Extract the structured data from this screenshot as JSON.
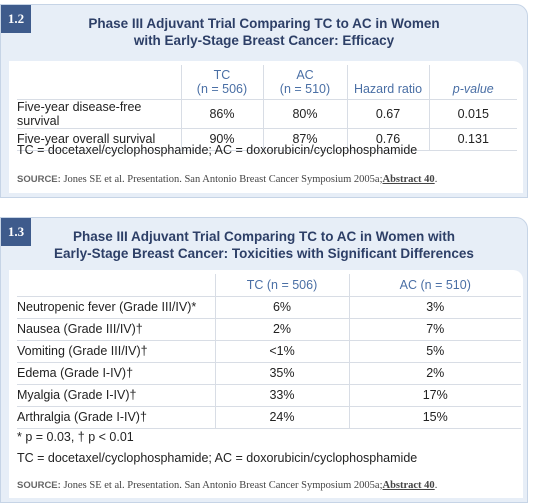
{
  "sections": [
    {
      "badge": "1.2",
      "title": [
        "Phase III Adjuvant Trial Comparing TC to AC in Women",
        "with Early-Stage Breast Cancer: Efficacy"
      ],
      "table": {
        "header": [
          [
            "TC",
            "(n = 506)"
          ],
          [
            "AC",
            "(n = 510)"
          ],
          [
            "Hazard ratio"
          ],
          [
            "p-value"
          ]
        ],
        "rows": [
          [
            "Five-year disease-free survival",
            "86%",
            "80%",
            "0.67",
            "0.015"
          ],
          [
            "Five-year overall survival",
            "90%",
            "87%",
            "0.76",
            "0.131"
          ]
        ]
      },
      "notes": [
        "TC = docetaxel/cyclophosphamide; AC = doxorubicin/cyclophosphamide"
      ],
      "source": {
        "label": "SOURCE:",
        "text": "Jones SE et al. Presentation. San Antonio Breast Cancer Symposium 2005a;",
        "link": "Abstract 40",
        "end": "."
      }
    },
    {
      "badge": "1.3",
      "title": [
        "Phase III Adjuvant Trial Comparing TC to AC in Women with",
        "Early-Stage Breast Cancer: Toxicities with Significant Differences"
      ],
      "table": {
        "header": [
          [
            "TC (n = 506)"
          ],
          [
            "AC (n = 510)"
          ]
        ],
        "rows": [
          [
            "Neutropenic fever (Grade III/IV)*",
            "6%",
            "3%"
          ],
          [
            "Nausea (Grade III/IV)†",
            "2%",
            "7%"
          ],
          [
            "Vomiting (Grade III/IV)†",
            "<1%",
            "5%"
          ],
          [
            "Edema (Grade I-IV)†",
            "35%",
            "2%"
          ],
          [
            "Myalgia (Grade I-IV)†",
            "33%",
            "17%"
          ],
          [
            "Arthralgia (Grade I-IV)†",
            "24%",
            "15%"
          ]
        ]
      },
      "notes": [
        "* p = 0.03, † p < 0.01",
        "TC = docetaxel/cyclophosphamide; AC = doxorubicin/cyclophosphamide"
      ],
      "source": {
        "label": "SOURCE:",
        "text": "Jones SE et al. Presentation. San Antonio Breast Cancer Symposium 2005a;",
        "link": "Abstract 40",
        "end": "."
      }
    }
  ]
}
